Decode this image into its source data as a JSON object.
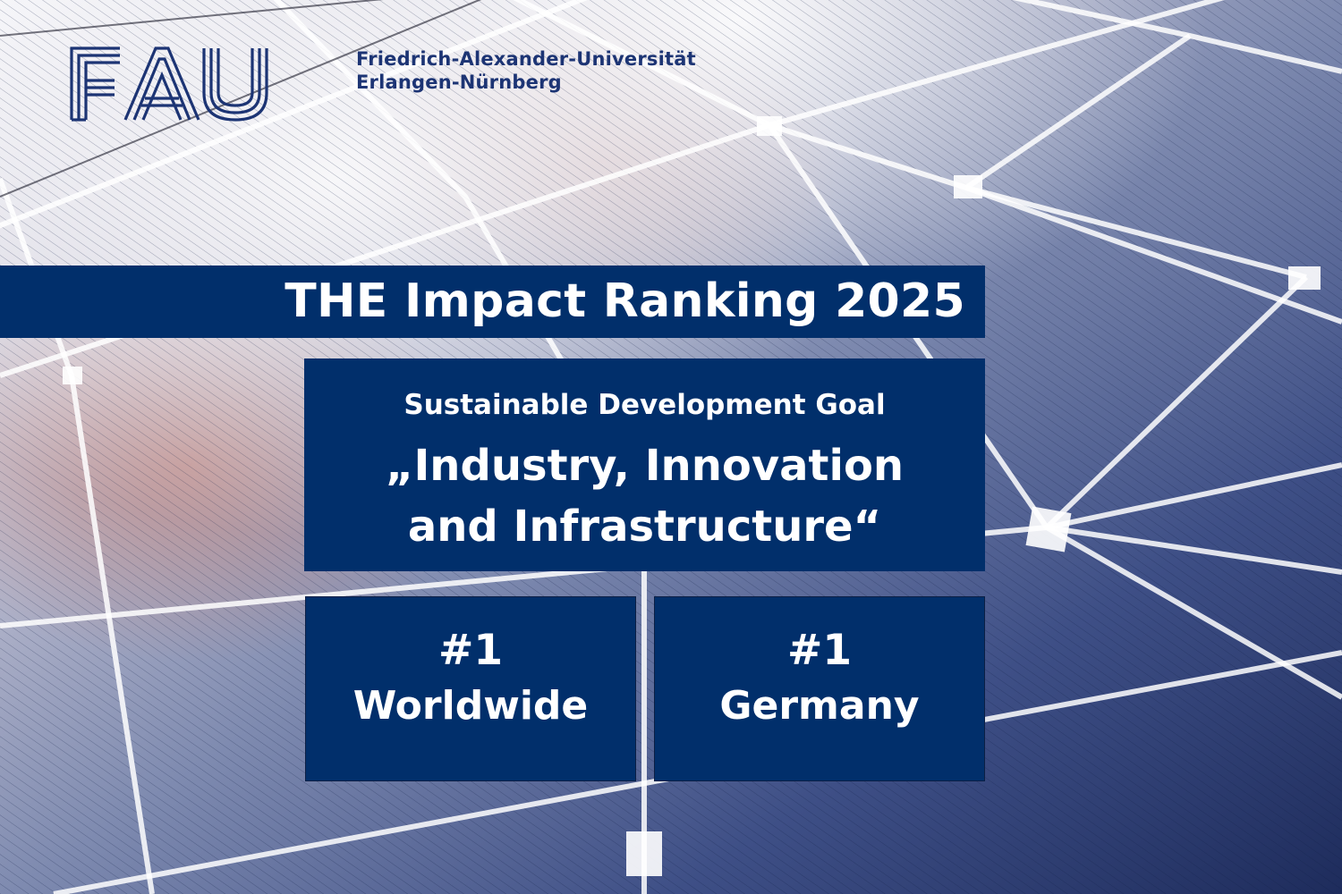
{
  "colors": {
    "navy": "#012f6b",
    "logo_blue": "#1c3474",
    "text": "#ffffff"
  },
  "logo": {
    "mark": "FAU",
    "name_line1": "Friedrich-Alexander-Universität",
    "name_line2": "Erlangen-Nürnberg"
  },
  "headline": "THE Impact Ranking 2025",
  "goal": {
    "label": "Sustainable Development Goal",
    "name_line1": "„Industry, Innovation",
    "name_line2": "and Infrastructure“"
  },
  "ranks": [
    {
      "position": "#1",
      "scope": "Worldwide"
    },
    {
      "position": "#1",
      "scope": "Germany"
    }
  ],
  "background": {
    "icon": "solar-panel-photo"
  }
}
